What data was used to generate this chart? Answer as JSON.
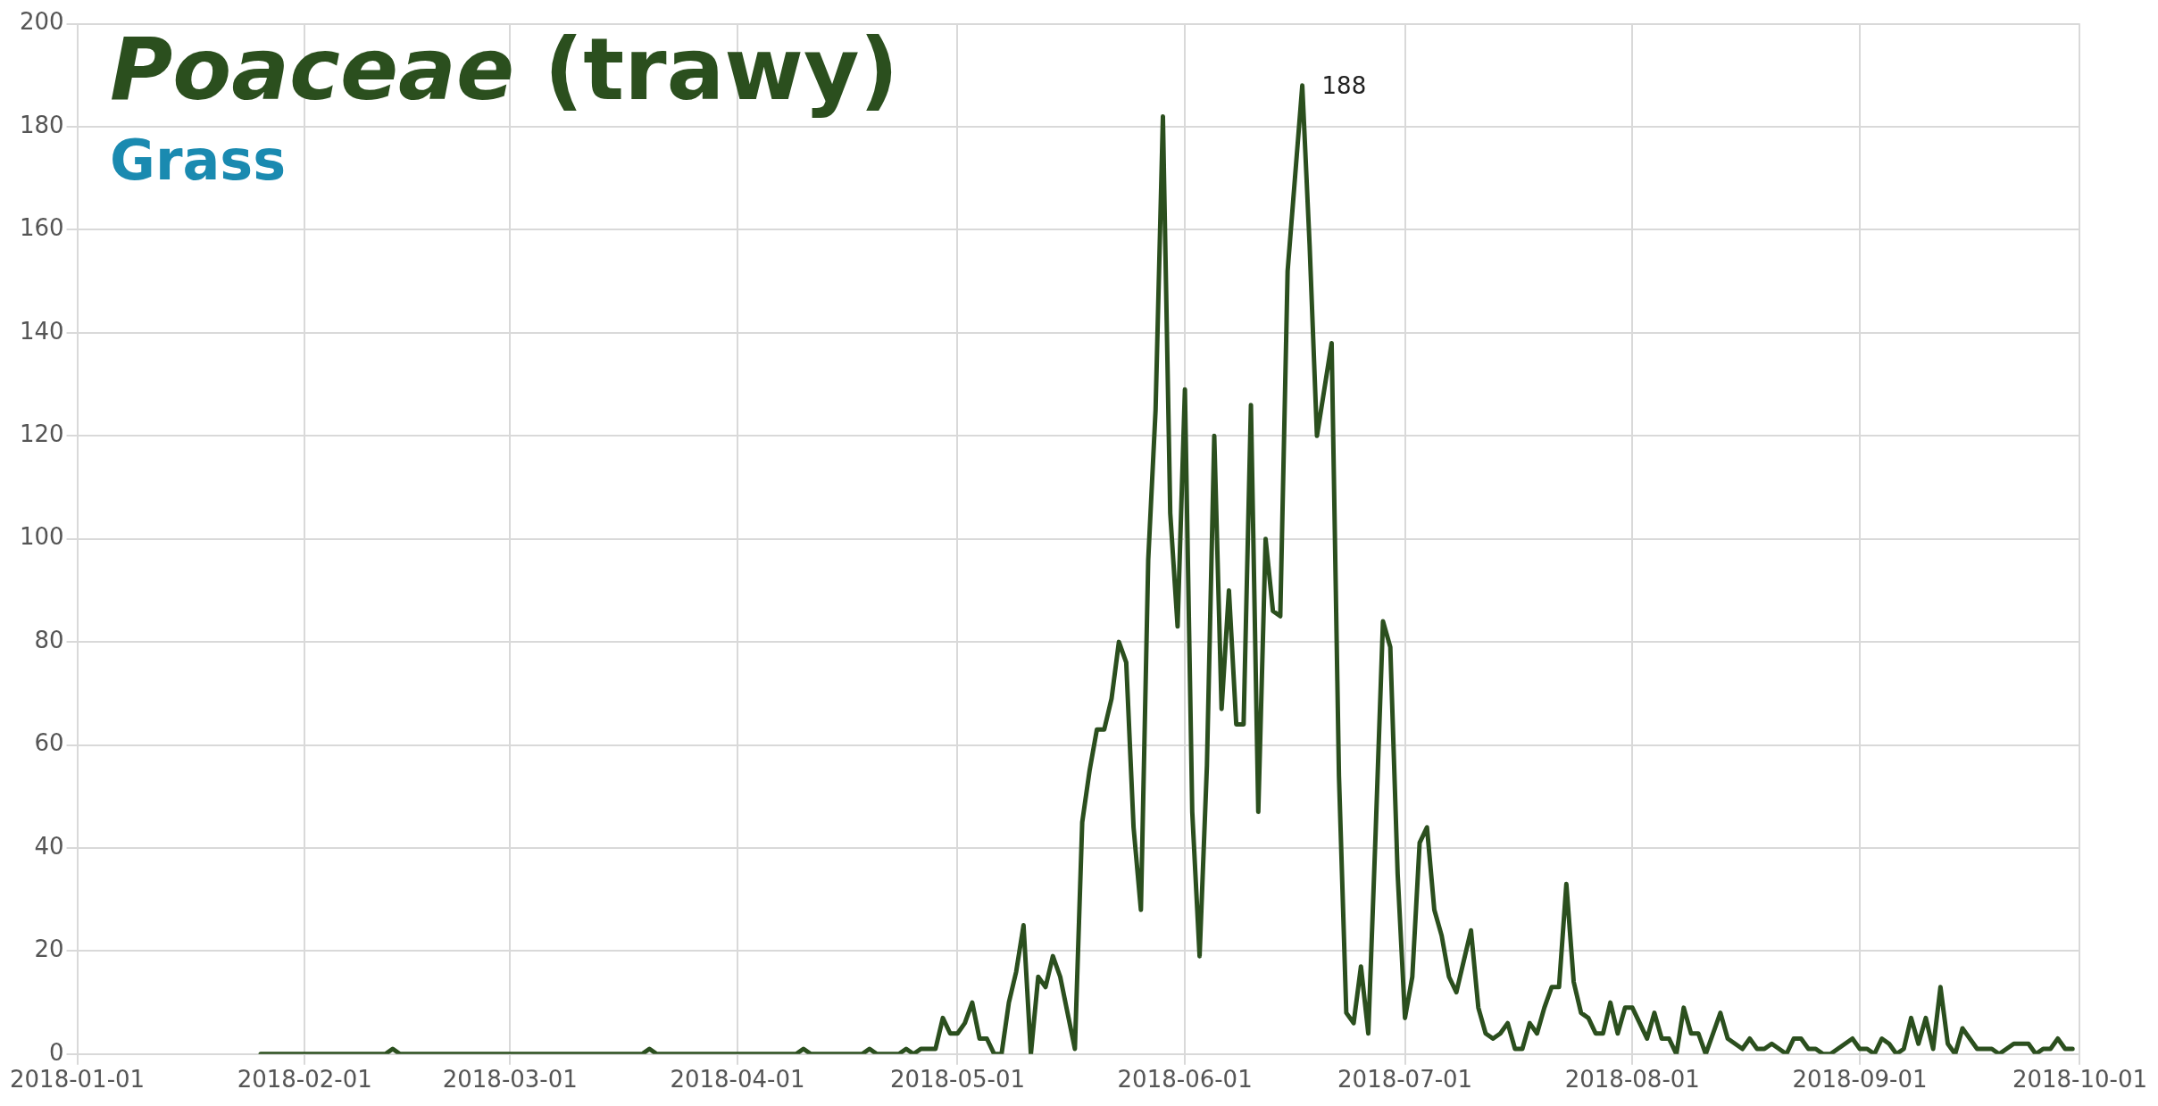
{
  "chart_data": {
    "type": "line",
    "title": "Poaceae (trawy)",
    "subtitle": "Grass",
    "x": [
      "2018-01-26",
      "2018-02-12",
      "2018-02-13",
      "2018-02-14",
      "2018-03-19",
      "2018-03-20",
      "2018-03-21",
      "2018-04-09",
      "2018-04-10",
      "2018-04-11",
      "2018-04-18",
      "2018-04-19",
      "2018-04-20",
      "2018-04-23",
      "2018-04-24",
      "2018-04-25",
      "2018-04-26",
      "2018-04-27",
      "2018-04-28",
      "2018-04-29",
      "2018-04-30",
      "2018-05-01",
      "2018-05-02",
      "2018-05-03",
      "2018-05-04",
      "2018-05-05",
      "2018-05-06",
      "2018-05-07",
      "2018-05-08",
      "2018-05-09",
      "2018-05-10",
      "2018-05-11",
      "2018-05-12",
      "2018-05-13",
      "2018-05-14",
      "2018-05-15",
      "2018-05-16",
      "2018-05-17",
      "2018-05-18",
      "2018-05-19",
      "2018-05-20",
      "2018-05-21",
      "2018-05-22",
      "2018-05-23",
      "2018-05-24",
      "2018-05-25",
      "2018-05-26",
      "2018-05-27",
      "2018-05-28",
      "2018-05-29",
      "2018-05-30",
      "2018-05-31",
      "2018-06-01",
      "2018-06-02",
      "2018-06-03",
      "2018-06-04",
      "2018-06-05",
      "2018-06-06",
      "2018-06-07",
      "2018-06-08",
      "2018-06-09",
      "2018-06-10",
      "2018-06-11",
      "2018-06-12",
      "2018-06-13",
      "2018-06-14",
      "2018-06-15",
      "2018-06-16",
      "2018-06-17",
      "2018-06-18",
      "2018-06-19",
      "2018-06-20",
      "2018-06-21",
      "2018-06-22",
      "2018-06-23",
      "2018-06-24",
      "2018-06-25",
      "2018-06-26",
      "2018-06-27",
      "2018-06-28",
      "2018-06-29",
      "2018-06-30",
      "2018-07-01",
      "2018-07-02",
      "2018-07-03",
      "2018-07-04",
      "2018-07-05",
      "2018-07-06",
      "2018-07-07",
      "2018-07-08",
      "2018-07-09",
      "2018-07-10",
      "2018-07-11",
      "2018-07-12",
      "2018-07-13",
      "2018-07-14",
      "2018-07-15",
      "2018-07-16",
      "2018-07-17",
      "2018-07-18",
      "2018-07-19",
      "2018-07-20",
      "2018-07-21",
      "2018-07-22",
      "2018-07-23",
      "2018-07-24",
      "2018-07-25",
      "2018-07-26",
      "2018-07-27",
      "2018-07-28",
      "2018-07-29",
      "2018-07-30",
      "2018-07-31",
      "2018-08-01",
      "2018-08-02",
      "2018-08-03",
      "2018-08-04",
      "2018-08-05",
      "2018-08-06",
      "2018-08-07",
      "2018-08-08",
      "2018-08-09",
      "2018-08-10",
      "2018-08-11",
      "2018-08-12",
      "2018-08-13",
      "2018-08-14",
      "2018-08-15",
      "2018-08-16",
      "2018-08-17",
      "2018-08-18",
      "2018-08-19",
      "2018-08-20",
      "2018-08-21",
      "2018-08-22",
      "2018-08-23",
      "2018-08-24",
      "2018-08-25",
      "2018-08-26",
      "2018-08-27",
      "2018-08-28",
      "2018-08-29",
      "2018-08-30",
      "2018-08-31",
      "2018-09-01",
      "2018-09-02",
      "2018-09-03",
      "2018-09-04",
      "2018-09-05",
      "2018-09-06",
      "2018-09-07",
      "2018-09-08",
      "2018-09-09",
      "2018-09-10",
      "2018-09-11",
      "2018-09-12",
      "2018-09-13",
      "2018-09-14",
      "2018-09-15",
      "2018-09-16",
      "2018-09-17",
      "2018-09-18",
      "2018-09-19",
      "2018-09-20",
      "2018-09-21",
      "2018-09-22",
      "2018-09-23",
      "2018-09-24",
      "2018-09-25",
      "2018-09-26",
      "2018-09-27",
      "2018-09-28",
      "2018-09-29",
      "2018-09-30"
    ],
    "series": [
      {
        "color": "#2b4f1e",
        "values": [
          0,
          0,
          1,
          0,
          0,
          1,
          0,
          0,
          1,
          0,
          0,
          1,
          0,
          0,
          1,
          0,
          1,
          1,
          1,
          7,
          4,
          4,
          6,
          10,
          3,
          3,
          0,
          0,
          10,
          16,
          25,
          0,
          15,
          13,
          19,
          15,
          8,
          1,
          45,
          55,
          63,
          63,
          69,
          80,
          76,
          44,
          28,
          96,
          125,
          182,
          105,
          83,
          129,
          47,
          19,
          56,
          120,
          67,
          90,
          64,
          64,
          126,
          47,
          100,
          86,
          85,
          152,
          170,
          188,
          157,
          120,
          129,
          138,
          54,
          8,
          6,
          17,
          4,
          43,
          84,
          79,
          35,
          7,
          15,
          41,
          44,
          28,
          23,
          15,
          12,
          18,
          24,
          9,
          4,
          3,
          4,
          6,
          1,
          1,
          6,
          4,
          9,
          13,
          13,
          33,
          14,
          8,
          7,
          4,
          4,
          10,
          4,
          9,
          9,
          6,
          3,
          8,
          3,
          3,
          0,
          9,
          4,
          4,
          0,
          4,
          8,
          3,
          2,
          1,
          3,
          1,
          1,
          2,
          1,
          0,
          3,
          3,
          1,
          1,
          0,
          0,
          1,
          2,
          3,
          1,
          1,
          0,
          3,
          2,
          0,
          1,
          7,
          2,
          7,
          1,
          13,
          2,
          0,
          5,
          3,
          1,
          1,
          1,
          0,
          1,
          2,
          2,
          2,
          0,
          1,
          1,
          3,
          1,
          1
        ]
      }
    ],
    "xlim": [
      "2018-01-01",
      "2018-10-01"
    ],
    "xticks": [
      "2018-01-01",
      "2018-02-01",
      "2018-03-01",
      "2018-04-01",
      "2018-05-01",
      "2018-06-01",
      "2018-07-01",
      "2018-08-01",
      "2018-09-01",
      "2018-10-01"
    ],
    "ylim": [
      0,
      200
    ],
    "yticks": [
      0,
      20,
      40,
      60,
      80,
      100,
      120,
      140,
      160,
      180,
      200
    ],
    "annotations": [
      {
        "text": "188",
        "x": "2018-06-17",
        "y": 188
      }
    ],
    "grid": true,
    "legend": false,
    "marker": "none",
    "line_style": "solid"
  }
}
